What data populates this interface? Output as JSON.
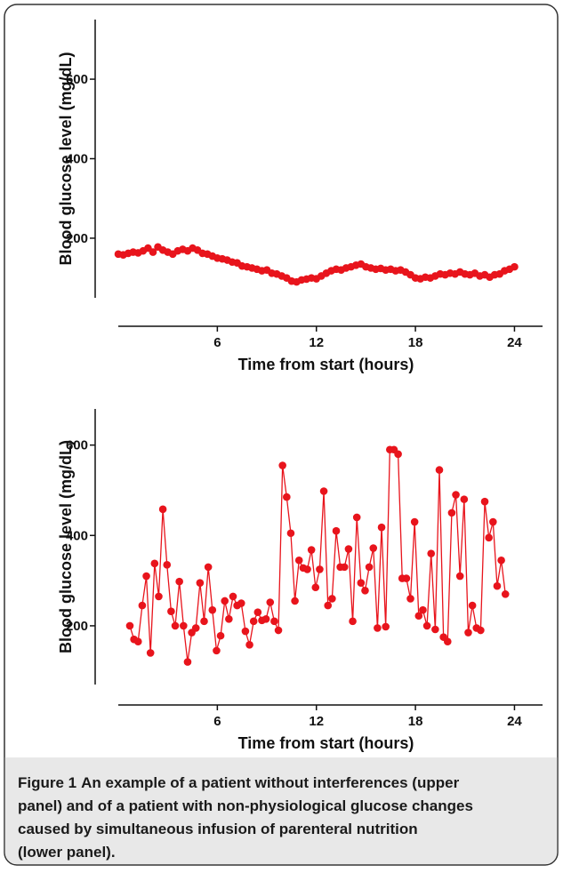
{
  "chart_data": [
    {
      "type": "line",
      "ylabel": "Blood glucose level (mg/dL)",
      "xlabel": "Time from start (hours)",
      "xlim": [
        0,
        25.7
      ],
      "xticks": [
        6,
        12,
        18,
        24
      ],
      "ylim": [
        50,
        750
      ],
      "yticks": [
        200,
        400,
        600
      ],
      "series": [
        {
          "color": "#e8141c",
          "x": [
            0,
            0.3,
            0.6,
            0.9,
            1.2,
            1.5,
            1.8,
            2.1,
            2.4,
            2.7,
            3.0,
            3.3,
            3.6,
            3.9,
            4.2,
            4.5,
            4.8,
            5.1,
            5.4,
            5.7,
            6.0,
            6.3,
            6.6,
            6.9,
            7.2,
            7.5,
            7.8,
            8.1,
            8.4,
            8.7,
            9.0,
            9.3,
            9.6,
            9.9,
            10.2,
            10.5,
            10.8,
            11.1,
            11.4,
            11.7,
            12.0,
            12.3,
            12.6,
            12.9,
            13.2,
            13.5,
            13.8,
            14.1,
            14.4,
            14.7,
            15.0,
            15.3,
            15.6,
            15.9,
            16.2,
            16.5,
            16.8,
            17.1,
            17.4,
            17.7,
            18.0,
            18.3,
            18.6,
            18.9,
            19.2,
            19.5,
            19.8,
            20.1,
            20.4,
            20.7,
            21.0,
            21.3,
            21.6,
            21.9,
            22.2,
            22.5,
            22.8,
            23.1,
            23.4,
            23.7,
            24.0
          ],
          "values": [
            160,
            158,
            162,
            165,
            163,
            168,
            175,
            165,
            178,
            170,
            165,
            160,
            168,
            172,
            168,
            175,
            170,
            162,
            160,
            155,
            150,
            148,
            145,
            140,
            138,
            130,
            128,
            125,
            122,
            118,
            120,
            112,
            110,
            105,
            100,
            92,
            90,
            95,
            97,
            100,
            98,
            105,
            112,
            118,
            122,
            120,
            125,
            128,
            132,
            135,
            128,
            125,
            122,
            124,
            120,
            122,
            118,
            120,
            115,
            108,
            100,
            98,
            102,
            100,
            105,
            110,
            108,
            112,
            110,
            115,
            110,
            108,
            112,
            105,
            108,
            102,
            108,
            110,
            118,
            122,
            128
          ]
        }
      ]
    },
    {
      "type": "line",
      "ylabel": "Blood glucose level (mg/dL)",
      "xlabel": "Time from start (hours)",
      "xlim": [
        0,
        25.7
      ],
      "xticks": [
        6,
        12,
        18,
        24
      ],
      "ylim": [
        70,
        680
      ],
      "yticks": [
        200,
        400,
        600
      ],
      "series": [
        {
          "color": "#e8141c",
          "x": [
            0.7,
            0.95,
            1.2,
            1.45,
            1.7,
            1.95,
            2.2,
            2.45,
            2.7,
            2.95,
            3.2,
            3.45,
            3.7,
            3.95,
            4.2,
            4.45,
            4.7,
            4.95,
            5.2,
            5.45,
            5.7,
            5.95,
            6.2,
            6.45,
            6.7,
            6.95,
            7.2,
            7.45,
            7.7,
            7.95,
            8.2,
            8.45,
            8.7,
            8.95,
            9.2,
            9.45,
            9.7,
            9.95,
            10.2,
            10.45,
            10.7,
            10.95,
            11.2,
            11.45,
            11.7,
            11.95,
            12.2,
            12.45,
            12.7,
            12.95,
            13.2,
            13.45,
            13.7,
            13.95,
            14.2,
            14.45,
            14.7,
            14.95,
            15.2,
            15.45,
            15.7,
            15.95,
            16.2,
            16.45,
            16.7,
            16.95,
            17.2,
            17.45,
            17.7,
            17.95,
            18.2,
            18.45,
            18.7,
            18.95,
            19.2,
            19.45,
            19.7,
            19.95,
            20.2,
            20.45,
            20.7,
            20.95,
            21.2,
            21.45,
            21.7,
            21.95,
            22.2,
            22.45,
            22.7,
            22.95,
            23.2,
            23.45
          ],
          "values": [
            200,
            170,
            165,
            245,
            310,
            140,
            338,
            265,
            458,
            335,
            232,
            200,
            298,
            200,
            120,
            185,
            195,
            295,
            210,
            330,
            235,
            145,
            178,
            255,
            215,
            265,
            245,
            250,
            188,
            158,
            210,
            230,
            212,
            215,
            252,
            210,
            190,
            555,
            485,
            405,
            255,
            345,
            328,
            325,
            368,
            285,
            325,
            498,
            245,
            260,
            410,
            330,
            330,
            370,
            210,
            440,
            295,
            278,
            330,
            372,
            195,
            418,
            198,
            590,
            590,
            580,
            305,
            305,
            260,
            430,
            222,
            235,
            200,
            360,
            192,
            545,
            175,
            165,
            450,
            490,
            310,
            480,
            185,
            245,
            195,
            190,
            475,
            395,
            430,
            288,
            345,
            270
          ]
        }
      ]
    }
  ],
  "caption": {
    "label": "Figure 1",
    "lines": [
      "An example of a patient without interferences (upper",
      "panel) and of a patient with non-physiological glucose changes",
      "caused by simultaneous infusion of parenteral nutrition",
      "(lower panel)."
    ]
  }
}
